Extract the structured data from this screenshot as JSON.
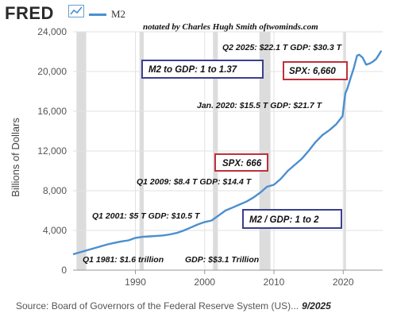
{
  "header": {
    "logo": "FRED",
    "logo_icon": "trend-chart-icon",
    "series_label": "M2",
    "series_color": "#4a8fd0",
    "notation": "notated by Charles Hugh Smith  oftwominds.com"
  },
  "footer": {
    "source": "Source: Board of Governors of the Federal Reserve System (US)...",
    "date": "9/2025"
  },
  "chart_data": {
    "type": "line",
    "ylabel": "Billions of Dollars",
    "xlim": [
      1981,
      2025.7
    ],
    "ylim": [
      0,
      24000
    ],
    "yticks": [
      "0",
      "4,000",
      "8,000",
      "12,000",
      "16,000",
      "20,000",
      "24,000"
    ],
    "ytick_values": [
      0,
      4000,
      8000,
      12000,
      16000,
      20000,
      24000
    ],
    "xticks": [
      "1990",
      "2000",
      "2010",
      "2020"
    ],
    "xtick_values": [
      1990,
      2000,
      2010,
      2020
    ],
    "grid": true,
    "recessions": [
      [
        1981.5,
        1982.9
      ],
      [
        1990.6,
        1991.2
      ],
      [
        2001.2,
        2001.9
      ],
      [
        2007.9,
        2009.5
      ],
      [
        2020.1,
        2020.4
      ]
    ],
    "series": [
      {
        "name": "M2",
        "color": "#4a8fd0",
        "x": [
          1981.0,
          1982.0,
          1983.0,
          1984.0,
          1985.0,
          1986.0,
          1987.0,
          1988.0,
          1989.0,
          1990.0,
          1991.0,
          1992.0,
          1993.0,
          1994.0,
          1995.0,
          1996.0,
          1997.0,
          1998.0,
          1999.0,
          2000.0,
          2001.0,
          2002.0,
          2003.0,
          2004.0,
          2005.0,
          2006.0,
          2007.0,
          2008.0,
          2009.0,
          2010.0,
          2011.0,
          2012.0,
          2013.0,
          2014.0,
          2015.0,
          2016.0,
          2017.0,
          2018.0,
          2019.0,
          2019.9,
          2020.3,
          2020.6,
          2021.0,
          2021.5,
          2022.0,
          2022.3,
          2022.8,
          2023.3,
          2023.8,
          2024.3,
          2024.8,
          2025.5
        ],
        "y": [
          1600,
          1800,
          2000,
          2200,
          2400,
          2600,
          2750,
          2900,
          3000,
          3250,
          3350,
          3400,
          3450,
          3500,
          3600,
          3750,
          4000,
          4300,
          4600,
          4850,
          5000,
          5500,
          6000,
          6300,
          6600,
          6900,
          7300,
          7800,
          8400,
          8600,
          9200,
          10000,
          10600,
          11200,
          12000,
          12900,
          13600,
          14100,
          14700,
          15500,
          17800,
          18300,
          19200,
          20300,
          21600,
          21700,
          21400,
          20700,
          20800,
          21000,
          21300,
          22100
        ]
      }
    ],
    "annotations": {
      "q2_2025": "Q2 2025: $22.1 T  GDP: $30.3 T",
      "m2_gdp_137": "M2 to GDP: 1 to 1.37",
      "spx_6660": "SPX: 6,660",
      "jan_2020": "Jan. 2020: $15.5 T  GDP: $21.7 T",
      "spx_666": "SPX: 666",
      "q1_2009": "Q1 2009: $8.4 T  GDP: $14.4 T",
      "q1_2001": "Q1 2001: $5 T   GDP: $10.5 T",
      "m2_gdp_2": "M2 / GDP: 1 to 2",
      "q1_1981": "Q1 1981: $1.6 trillion",
      "gdp_1981": "GDP: $$3.1 Trillion"
    }
  }
}
